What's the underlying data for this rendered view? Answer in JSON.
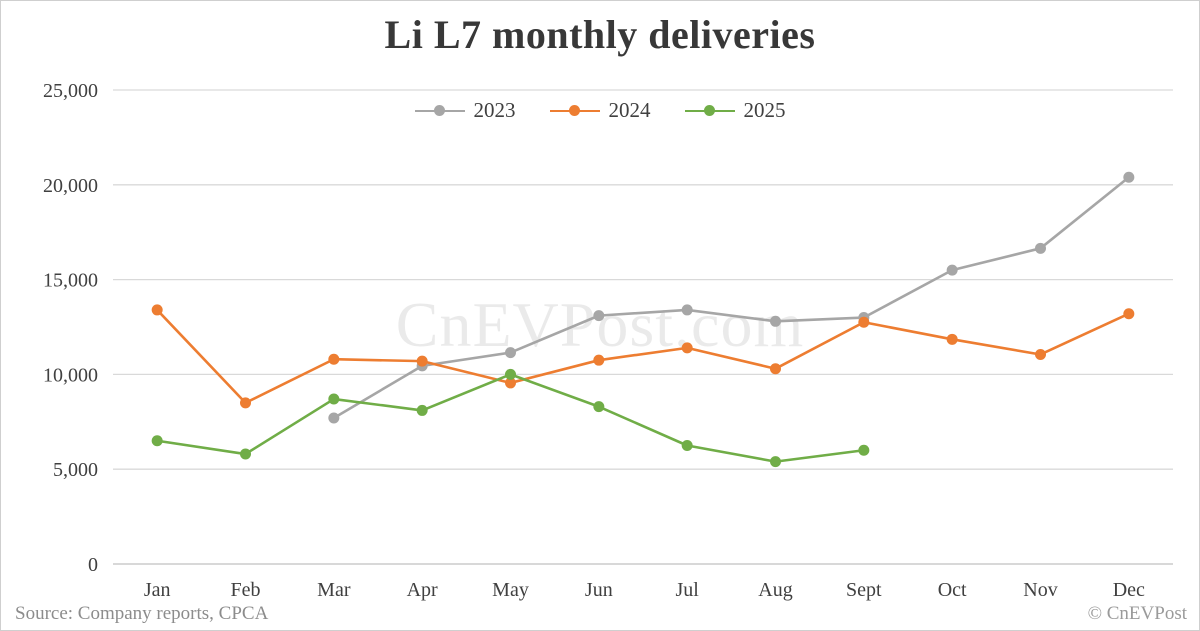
{
  "title": "Li L7 monthly deliveries",
  "watermark": "CnEVPost.com",
  "footer": {
    "source": "Source: Company reports, CPCA",
    "copyright": "© CnEVPost"
  },
  "palette": {
    "background": "#ffffff",
    "frame_border": "#cfcfcf",
    "grid": "#d9d9d9",
    "zero_axis": "#c0c0c0",
    "axis_text": "#404040",
    "title_text": "#383838",
    "footer_text": "#8c8c8c",
    "watermark_text": "#000000"
  },
  "chart_data": {
    "type": "line",
    "title": "Li L7 monthly deliveries",
    "categories": [
      "Jan",
      "Feb",
      "Mar",
      "Apr",
      "May",
      "Jun",
      "Jul",
      "Aug",
      "Sept",
      "Oct",
      "Nov",
      "Dec"
    ],
    "series": [
      {
        "name": "2023",
        "color": "#a6a6a6",
        "values": [
          null,
          null,
          7700,
          10450,
          11150,
          13100,
          13400,
          12800,
          13000,
          15500,
          16650,
          20400
        ]
      },
      {
        "name": "2024",
        "color": "#ed7d31",
        "values": [
          13400,
          8500,
          10800,
          10700,
          9550,
          10750,
          11400,
          10300,
          12750,
          11850,
          11050,
          13200
        ]
      },
      {
        "name": "2025",
        "color": "#70ad47",
        "values": [
          6500,
          5800,
          8700,
          8100,
          10000,
          8300,
          6250,
          5400,
          6000,
          null,
          null,
          null
        ]
      }
    ],
    "ylim": [
      0,
      25000
    ],
    "ytick_interval": 5000,
    "ytick_labels": [
      "0",
      "5,000",
      "10,000",
      "15,000",
      "20,000",
      "25,000"
    ],
    "grid": true,
    "legend_position": "top-center"
  }
}
